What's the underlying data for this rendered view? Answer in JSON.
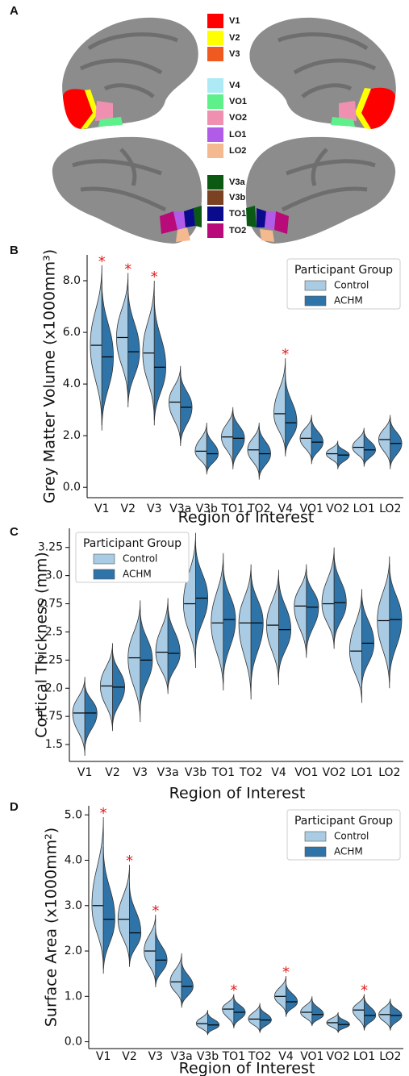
{
  "panel_a": {
    "label": "A",
    "regions": [
      {
        "name": "V1",
        "color": "#ff0000"
      },
      {
        "name": "V2",
        "color": "#ffff00"
      },
      {
        "name": "V3",
        "color": "#f05a1e"
      },
      {
        "name": "V4",
        "color": "#aeeaf5"
      },
      {
        "name": "VO1",
        "color": "#5ef08a"
      },
      {
        "name": "VO2",
        "color": "#f090b0"
      },
      {
        "name": "LO1",
        "color": "#b05ce8"
      },
      {
        "name": "LO2",
        "color": "#f5b990"
      },
      {
        "name": "V3a",
        "color": "#0a5a14"
      },
      {
        "name": "V3b",
        "color": "#7a4222"
      },
      {
        "name": "TO1",
        "color": "#0a0a8c"
      },
      {
        "name": "TO2",
        "color": "#b80a78"
      }
    ]
  },
  "chart_data": [
    {
      "type": "violin",
      "panel_label": "B",
      "x_label": "Region of Interest",
      "y_label": "Grey Matter Volume (x1000mm³)",
      "categories": [
        "V1",
        "V2",
        "V3",
        "V3a",
        "V3b",
        "TO1",
        "TO2",
        "V4",
        "VO1",
        "VO2",
        "LO1",
        "LO2"
      ],
      "series": [
        {
          "name": "Control",
          "color": "#a9cbe3",
          "values": [
            5.5,
            5.8,
            5.2,
            3.3,
            1.4,
            1.95,
            1.45,
            2.85,
            1.9,
            1.3,
            1.55,
            1.85
          ],
          "min": [
            2.4,
            3.3,
            2.6,
            1.7,
            0.6,
            0.8,
            0.4,
            1.3,
            1.0,
            0.8,
            0.9,
            0.8
          ],
          "max": [
            8.6,
            8.3,
            8.0,
            4.7,
            2.5,
            3.1,
            2.5,
            5.0,
            2.8,
            1.8,
            2.3,
            2.8
          ]
        },
        {
          "name": "ACHM",
          "color": "#2f74a8",
          "values": [
            5.05,
            5.25,
            4.65,
            3.1,
            1.3,
            1.9,
            1.3,
            2.5,
            1.75,
            1.25,
            1.45,
            1.7
          ],
          "min": [
            2.2,
            3.1,
            2.4,
            1.6,
            0.5,
            0.7,
            0.3,
            1.2,
            0.9,
            0.7,
            0.8,
            0.7
          ],
          "max": [
            8.0,
            7.8,
            7.4,
            4.5,
            2.3,
            3.0,
            2.4,
            4.4,
            2.7,
            1.7,
            2.2,
            2.7
          ]
        }
      ],
      "ylim": [
        -0.4,
        9.0
      ],
      "yticks": [
        {
          "value": 0,
          "label": "0.0"
        },
        {
          "value": 2,
          "label": "2.0"
        },
        {
          "value": 4,
          "label": "4.0"
        },
        {
          "value": 6,
          "label": "6.0"
        },
        {
          "value": 8,
          "label": "8.0"
        }
      ],
      "legend_title": "Participant Group",
      "legend": "upper right",
      "annotations": [
        {
          "text": "*",
          "category": "V1"
        },
        {
          "text": "*",
          "category": "V2"
        },
        {
          "text": "*",
          "category": "V3"
        },
        {
          "text": "*",
          "category": "V4"
        }
      ]
    },
    {
      "type": "violin",
      "panel_label": "C",
      "x_label": "Region of Interest",
      "y_label": "Cortical Thickness (mm)",
      "categories": [
        "V1",
        "V2",
        "V3",
        "V3a",
        "V3b",
        "TO1",
        "TO2",
        "V4",
        "VO1",
        "VO2",
        "LO1",
        "LO2"
      ],
      "series": [
        {
          "name": "Control",
          "color": "#a9cbe3",
          "values": [
            1.78,
            2.02,
            2.27,
            2.32,
            2.75,
            2.58,
            2.58,
            2.56,
            2.73,
            2.75,
            2.33,
            2.6
          ],
          "min": [
            1.4,
            1.62,
            1.7,
            1.95,
            2.18,
            1.98,
            1.9,
            2.03,
            2.27,
            2.35,
            1.87,
            2.0
          ],
          "max": [
            2.1,
            2.4,
            2.78,
            2.8,
            3.38,
            3.2,
            3.1,
            3.05,
            3.1,
            3.25,
            2.88,
            3.17
          ]
        },
        {
          "name": "ACHM",
          "color": "#2f74a8",
          "values": [
            1.78,
            2.01,
            2.25,
            2.31,
            2.8,
            2.61,
            2.58,
            2.52,
            2.72,
            2.76,
            2.4,
            2.61
          ],
          "min": [
            1.45,
            1.65,
            1.8,
            1.98,
            2.3,
            2.05,
            2.0,
            2.1,
            2.3,
            2.38,
            2.0,
            2.05
          ],
          "max": [
            2.05,
            2.35,
            2.7,
            2.75,
            3.3,
            3.1,
            3.05,
            3.0,
            3.05,
            3.2,
            2.85,
            3.1
          ]
        }
      ],
      "ylim": [
        1.35,
        3.42
      ],
      "yticks": [
        1.5,
        1.75,
        {
          "value": 2,
          "label": "2.0"
        },
        2.25,
        2.5,
        2.75,
        {
          "value": 3,
          "label": "3.0"
        },
        3.25
      ],
      "legend_title": "Participant Group",
      "legend": "upper left",
      "annotations": []
    },
    {
      "type": "violin",
      "panel_label": "D",
      "x_label": "Region of Interest",
      "y_label": "Surface Area (x1000mm²)",
      "categories": [
        "V1",
        "V2",
        "V3",
        "V3a",
        "V3b",
        "TO1",
        "TO2",
        "V4",
        "VO1",
        "VO2",
        "LO1",
        "LO2"
      ],
      "series": [
        {
          "name": "Control",
          "color": "#a9cbe3",
          "values": [
            3.0,
            2.7,
            2.0,
            1.32,
            0.4,
            0.72,
            0.5,
            1.0,
            0.65,
            0.42,
            0.7,
            0.6
          ],
          "min": [
            1.6,
            1.7,
            1.25,
            0.8,
            0.15,
            0.3,
            0.2,
            0.6,
            0.35,
            0.2,
            0.25,
            0.25
          ],
          "max": [
            4.95,
            3.9,
            2.8,
            1.95,
            0.7,
            1.05,
            0.85,
            1.45,
            1.0,
            0.65,
            1.05,
            0.95
          ]
        },
        {
          "name": "ACHM",
          "color": "#2f74a8",
          "values": [
            2.7,
            2.4,
            1.8,
            1.22,
            0.37,
            0.65,
            0.48,
            0.88,
            0.6,
            0.38,
            0.58,
            0.58
          ],
          "min": [
            1.5,
            1.65,
            1.2,
            0.75,
            0.15,
            0.3,
            0.2,
            0.55,
            0.35,
            0.2,
            0.25,
            0.25
          ],
          "max": [
            4.3,
            3.5,
            2.5,
            1.8,
            0.65,
            1.0,
            0.8,
            1.3,
            0.95,
            0.6,
            1.0,
            0.9
          ]
        }
      ],
      "ylim": [
        -0.15,
        5.2
      ],
      "yticks": [
        {
          "value": 0,
          "label": "0.0"
        },
        {
          "value": 1,
          "label": "1.0"
        },
        {
          "value": 2,
          "label": "2.0"
        },
        {
          "value": 3,
          "label": "3.0"
        },
        {
          "value": 4,
          "label": "4.0"
        },
        {
          "value": 5,
          "label": "5.0"
        }
      ],
      "legend_title": "Participant Group",
      "legend": "upper right",
      "annotations": [
        {
          "text": "*",
          "category": "V1"
        },
        {
          "text": "*",
          "category": "V2"
        },
        {
          "text": "*",
          "category": "V3"
        },
        {
          "text": "*",
          "category": "TO1"
        },
        {
          "text": "*",
          "category": "V4"
        },
        {
          "text": "*",
          "category": "LO1"
        }
      ]
    }
  ]
}
